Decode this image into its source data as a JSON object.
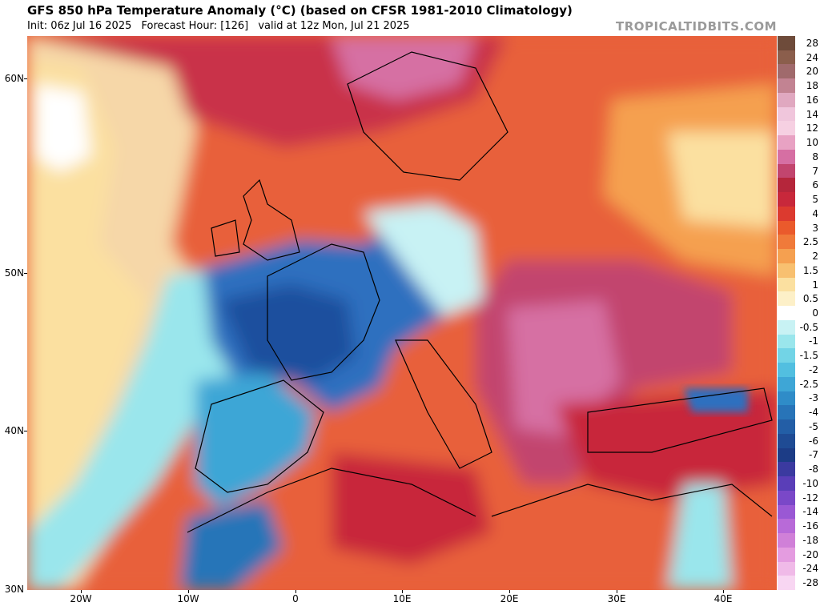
{
  "header": {
    "title": "GFS 850 hPa Temperature Anomaly (°C) (based on CFSR 1981-2010 Climatology)",
    "init": "Init: 06z Jul 16 2025",
    "forecast_hour": "Forecast Hour: [126]",
    "valid": "valid at 12z Mon, Jul 21 2025",
    "brand": "TROPICALTIDBITS.COM"
  },
  "map": {
    "lat_labels": [
      "60N",
      "50N",
      "40N",
      "30N"
    ],
    "lon_labels": [
      "20W",
      "10W",
      "0",
      "10E",
      "20E",
      "30E",
      "40E"
    ],
    "region_colors": {
      "ocean_west": "#f6d7a8",
      "atlantic_cold": "#9fe4ea",
      "france_cold": "#2f6fbf",
      "deep_cold": "#1d4f9e",
      "hot": "#e8613a",
      "very_hot": "#c9304a",
      "extreme": "#d95f9a"
    }
  },
  "colorbar": {
    "labels": [
      "28",
      "24",
      "20",
      "18",
      "16",
      "14",
      "12",
      "10",
      "8",
      "7",
      "6",
      "5",
      "4",
      "3",
      "2.5",
      "2",
      "1.5",
      "1",
      "0.5",
      "0",
      "-0.5",
      "-1",
      "-1.5",
      "-2",
      "-2.5",
      "-3",
      "-4",
      "-5",
      "-6",
      "-7",
      "-8",
      "-10",
      "-12",
      "-14",
      "-16",
      "-18",
      "-20",
      "-24",
      "-28"
    ],
    "colors": [
      "#6e4b3a",
      "#8b5e4c",
      "#a06a6c",
      "#c28392",
      "#e0a8c0",
      "#f0c6dc",
      "#f6d0e2",
      "#e8a2c3",
      "#d66fa3",
      "#c2456e",
      "#b5263b",
      "#c8283b",
      "#dc3a2f",
      "#ea5a2c",
      "#f07a3a",
      "#f5a050",
      "#f8c070",
      "#fbe0a0",
      "#fdf0c8",
      "#ffffff",
      "#c8f2f4",
      "#9ae6ec",
      "#72d4e6",
      "#52bfe0",
      "#3ea6d6",
      "#2f8cc8",
      "#2874b8",
      "#235ea6",
      "#1f4b94",
      "#1c3c86",
      "#3b3aa0",
      "#5a3eb8",
      "#7a48c8",
      "#9a58d4",
      "#b86ad8",
      "#d080d8",
      "#e49ce0",
      "#f0bae8",
      "#f8d6f2"
    ]
  }
}
